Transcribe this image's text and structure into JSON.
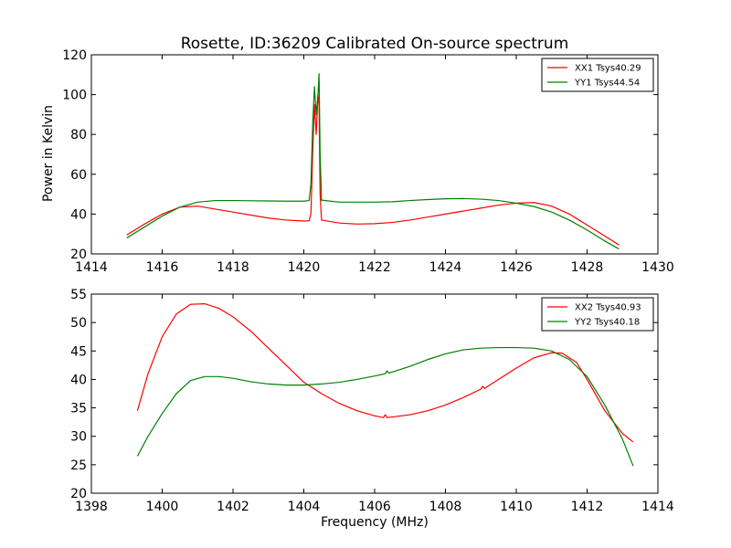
{
  "chart_data": [
    {
      "type": "line",
      "title": "Rosette, ID:36209 Calibrated On-source spectrum",
      "xlabel": "",
      "ylabel": "Power in Kelvin",
      "xlim": [
        1414,
        1430
      ],
      "ylim": [
        20,
        120
      ],
      "xticks": [
        "1414",
        "1416",
        "1418",
        "1420",
        "1422",
        "1424",
        "1426",
        "1428",
        "1430"
      ],
      "yticks": [
        "20",
        "40",
        "60",
        "80",
        "100",
        "120"
      ],
      "legend_position": "top-right",
      "series": [
        {
          "name": "XX1 Tsys40.29",
          "color": "#ff0000",
          "points": [
            [
              1415.0,
              29.5
            ],
            [
              1415.5,
              35.0
            ],
            [
              1416.0,
              40.0
            ],
            [
              1416.5,
              43.5
            ],
            [
              1417.0,
              44.0
            ],
            [
              1417.5,
              42.5
            ],
            [
              1418.0,
              41.0
            ],
            [
              1418.5,
              39.5
            ],
            [
              1419.0,
              38.0
            ],
            [
              1419.5,
              37.0
            ],
            [
              1420.0,
              36.5
            ],
            [
              1420.15,
              36.7
            ],
            [
              1420.2,
              40.0
            ],
            [
              1420.25,
              70.0
            ],
            [
              1420.3,
              95.0
            ],
            [
              1420.35,
              80.0
            ],
            [
              1420.4,
              100.0
            ],
            [
              1420.43,
              95.0
            ],
            [
              1420.46,
              50.0
            ],
            [
              1420.5,
              37.0
            ],
            [
              1421.0,
              35.5
            ],
            [
              1421.5,
              35.0
            ],
            [
              1422.0,
              35.2
            ],
            [
              1422.5,
              35.8
            ],
            [
              1423.0,
              37.0
            ],
            [
              1423.5,
              38.5
            ],
            [
              1424.0,
              40.0
            ],
            [
              1424.5,
              41.5
            ],
            [
              1425.0,
              43.0
            ],
            [
              1425.5,
              44.5
            ],
            [
              1426.0,
              45.5
            ],
            [
              1426.5,
              45.8
            ],
            [
              1427.0,
              44.0
            ],
            [
              1427.5,
              40.0
            ],
            [
              1428.0,
              34.5
            ],
            [
              1428.5,
              29.0
            ],
            [
              1428.9,
              24.5
            ]
          ]
        },
        {
          "name": "YY1 Tsys44.54",
          "color": "#008000",
          "points": [
            [
              1415.0,
              28.0
            ],
            [
              1415.5,
              33.5
            ],
            [
              1416.0,
              39.0
            ],
            [
              1416.5,
              43.5
            ],
            [
              1417.0,
              46.0
            ],
            [
              1417.5,
              46.8
            ],
            [
              1418.0,
              46.8
            ],
            [
              1418.5,
              46.7
            ],
            [
              1419.0,
              46.6
            ],
            [
              1419.5,
              46.5
            ],
            [
              1420.0,
              46.5
            ],
            [
              1420.15,
              46.8
            ],
            [
              1420.2,
              55.0
            ],
            [
              1420.25,
              85.0
            ],
            [
              1420.3,
              104.0
            ],
            [
              1420.35,
              90.0
            ],
            [
              1420.4,
              100.0
            ],
            [
              1420.43,
              110.5
            ],
            [
              1420.46,
              70.0
            ],
            [
              1420.5,
              47.0
            ],
            [
              1421.0,
              46.0
            ],
            [
              1421.5,
              46.0
            ],
            [
              1422.0,
              46.0
            ],
            [
              1422.5,
              46.2
            ],
            [
              1423.0,
              46.8
            ],
            [
              1423.5,
              47.3
            ],
            [
              1424.0,
              47.7
            ],
            [
              1424.5,
              47.8
            ],
            [
              1425.0,
              47.5
            ],
            [
              1425.5,
              46.8
            ],
            [
              1426.0,
              45.5
            ],
            [
              1426.5,
              43.8
            ],
            [
              1427.0,
              41.0
            ],
            [
              1427.5,
              37.0
            ],
            [
              1428.0,
              32.0
            ],
            [
              1428.5,
              26.5
            ],
            [
              1428.9,
              22.5
            ]
          ]
        }
      ]
    },
    {
      "type": "line",
      "title": "",
      "xlabel": "Frequency (MHz)",
      "ylabel": "",
      "xlim": [
        1398,
        1414
      ],
      "ylim": [
        20,
        55
      ],
      "xticks": [
        "1398",
        "1400",
        "1402",
        "1404",
        "1406",
        "1408",
        "1410",
        "1412",
        "1414"
      ],
      "yticks": [
        "20",
        "25",
        "30",
        "35",
        "40",
        "45",
        "50",
        "55"
      ],
      "legend_position": "top-right",
      "series": [
        {
          "name": "XX2 Tsys40.93",
          "color": "#ff0000",
          "points": [
            [
              1399.3,
              34.5
            ],
            [
              1399.6,
              41.0
            ],
            [
              1400.0,
              47.5
            ],
            [
              1400.4,
              51.5
            ],
            [
              1400.8,
              53.2
            ],
            [
              1401.2,
              53.3
            ],
            [
              1401.6,
              52.5
            ],
            [
              1402.0,
              51.0
            ],
            [
              1402.5,
              48.5
            ],
            [
              1403.0,
              45.5
            ],
            [
              1403.5,
              42.5
            ],
            [
              1404.0,
              39.5
            ],
            [
              1404.5,
              37.5
            ],
            [
              1405.0,
              35.8
            ],
            [
              1405.5,
              34.5
            ],
            [
              1406.0,
              33.6
            ],
            [
              1406.25,
              33.3
            ],
            [
              1406.3,
              33.8
            ],
            [
              1406.35,
              33.3
            ],
            [
              1406.5,
              33.4
            ],
            [
              1407.0,
              33.8
            ],
            [
              1407.5,
              34.5
            ],
            [
              1408.0,
              35.5
            ],
            [
              1408.5,
              36.8
            ],
            [
              1409.0,
              38.3
            ],
            [
              1409.05,
              38.8
            ],
            [
              1409.1,
              38.4
            ],
            [
              1409.5,
              40.0
            ],
            [
              1410.0,
              42.0
            ],
            [
              1410.5,
              43.8
            ],
            [
              1411.0,
              44.7
            ],
            [
              1411.3,
              44.6
            ],
            [
              1411.7,
              43.0
            ],
            [
              1412.0,
              40.0
            ],
            [
              1412.5,
              34.5
            ],
            [
              1413.0,
              30.5
            ],
            [
              1413.3,
              29.0
            ]
          ]
        },
        {
          "name": "YY2 Tsys40.18",
          "color": "#008000",
          "points": [
            [
              1399.3,
              26.5
            ],
            [
              1399.6,
              30.0
            ],
            [
              1400.0,
              34.0
            ],
            [
              1400.4,
              37.5
            ],
            [
              1400.8,
              39.8
            ],
            [
              1401.2,
              40.5
            ],
            [
              1401.6,
              40.5
            ],
            [
              1402.0,
              40.2
            ],
            [
              1402.5,
              39.6
            ],
            [
              1403.0,
              39.2
            ],
            [
              1403.5,
              39.0
            ],
            [
              1404.0,
              39.0
            ],
            [
              1404.5,
              39.2
            ],
            [
              1405.0,
              39.5
            ],
            [
              1405.5,
              40.0
            ],
            [
              1406.0,
              40.6
            ],
            [
              1406.3,
              41.0
            ],
            [
              1406.35,
              41.5
            ],
            [
              1406.4,
              41.1
            ],
            [
              1407.0,
              42.3
            ],
            [
              1407.5,
              43.5
            ],
            [
              1408.0,
              44.5
            ],
            [
              1408.5,
              45.2
            ],
            [
              1409.0,
              45.5
            ],
            [
              1409.5,
              45.6
            ],
            [
              1410.0,
              45.6
            ],
            [
              1410.5,
              45.5
            ],
            [
              1411.0,
              45.0
            ],
            [
              1411.5,
              43.5
            ],
            [
              1412.0,
              40.5
            ],
            [
              1412.5,
              35.5
            ],
            [
              1413.0,
              29.5
            ],
            [
              1413.3,
              24.8
            ]
          ]
        }
      ]
    }
  ]
}
